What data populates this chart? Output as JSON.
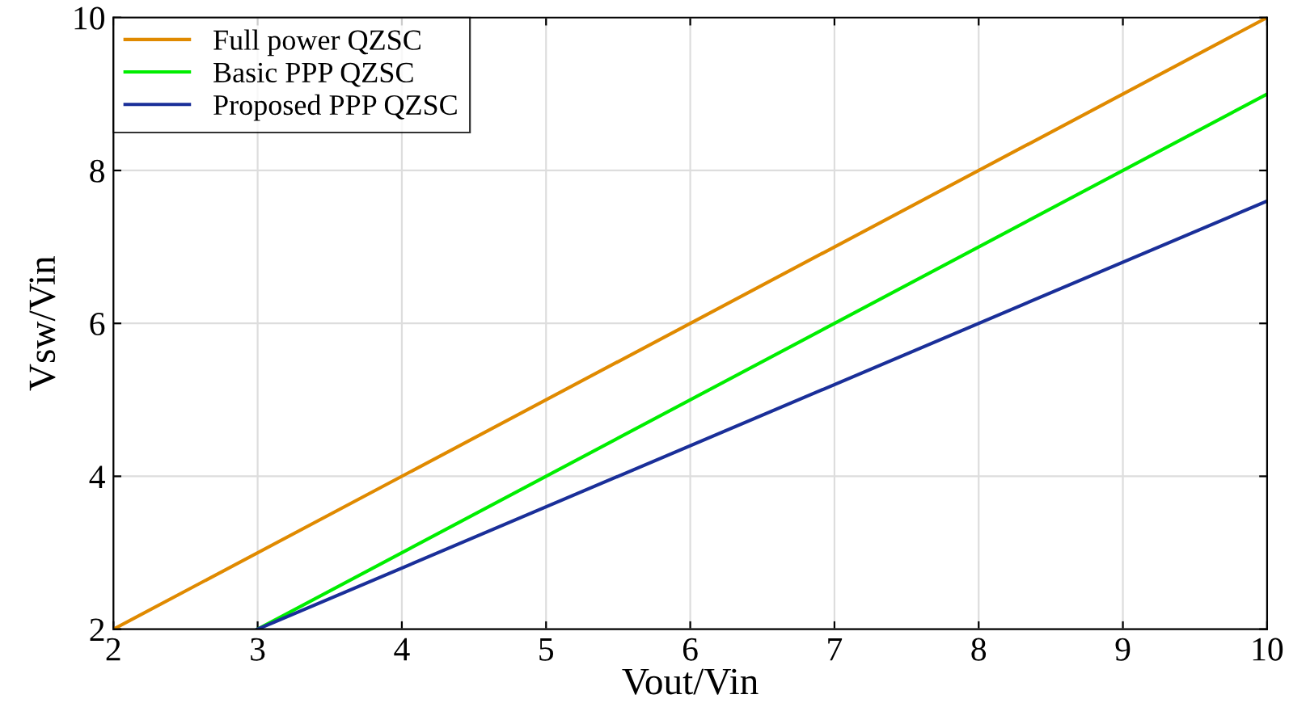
{
  "chart_data": {
    "type": "line",
    "xlabel": "Vout/Vin",
    "ylabel": "Vsw/Vin",
    "xlim": [
      2,
      10
    ],
    "ylim": [
      2,
      10
    ],
    "xticks": [
      2,
      3,
      4,
      5,
      6,
      7,
      8,
      9,
      10
    ],
    "yticks": [
      2,
      4,
      6,
      8,
      10
    ],
    "grid": true,
    "legend": "top left",
    "marker": "none",
    "line_style": "solid",
    "series": [
      {
        "name": "Full power QZSC",
        "color": "#e08a00",
        "x": [
          2,
          10
        ],
        "values": [
          2,
          10
        ]
      },
      {
        "name": "Basic PPP QZSC",
        "color": "#00ee00",
        "x": [
          3,
          10
        ],
        "values": [
          2,
          9
        ]
      },
      {
        "name": "Proposed PPP QZSC",
        "color": "#1a2f99",
        "x": [
          3,
          10
        ],
        "values": [
          2,
          7.6
        ]
      }
    ]
  }
}
